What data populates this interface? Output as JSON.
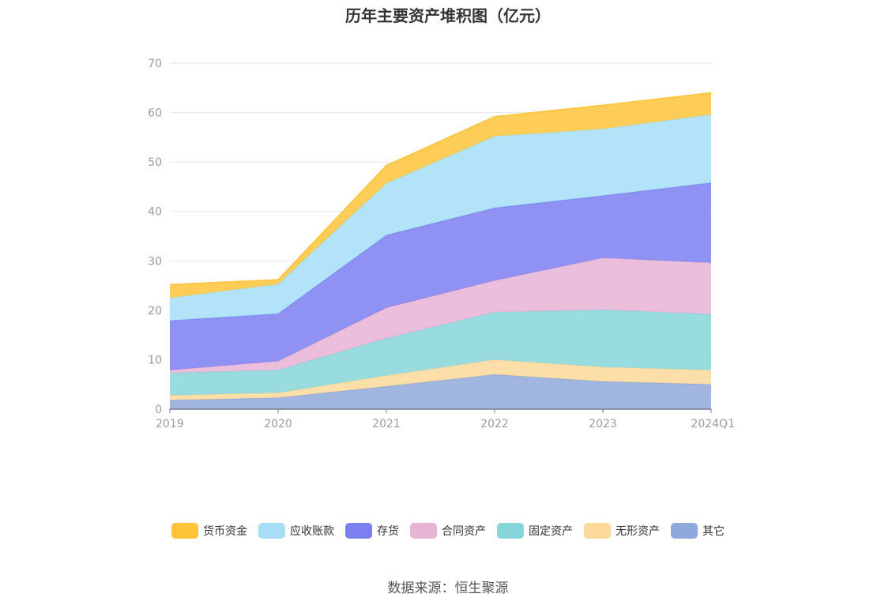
{
  "chart_data": {
    "type": "area",
    "stacked": true,
    "title": "历年主要资产堆积图（亿元）",
    "categories": [
      "2019",
      "2020",
      "2021",
      "2022",
      "2023",
      "2024Q1"
    ],
    "ylim": [
      0,
      70
    ],
    "yticks": [
      "0",
      "10",
      "20",
      "30",
      "40",
      "50",
      "60",
      "70"
    ],
    "grid": true,
    "legend_position": "bottom",
    "series": [
      {
        "name": "其它",
        "color": "#8fa9dc",
        "values": [
          1.8,
          2.3,
          4.6,
          7.0,
          5.6,
          5.0
        ]
      },
      {
        "name": "无形资产",
        "color": "#fcd899",
        "values": [
          1.0,
          1.0,
          2.2,
          3.0,
          2.9,
          2.9
        ]
      },
      {
        "name": "固定资产",
        "color": "#86d6d9",
        "values": [
          4.5,
          4.6,
          7.5,
          9.6,
          11.6,
          11.3
        ]
      },
      {
        "name": "合同资产",
        "color": "#e8b4d6",
        "values": [
          0.6,
          1.8,
          6.2,
          6.4,
          10.5,
          10.4
        ]
      },
      {
        "name": "存货",
        "color": "#7b7ff0",
        "values": [
          10.0,
          9.6,
          14.7,
          14.7,
          12.6,
          16.2
        ]
      },
      {
        "name": "应收账款",
        "color": "#a6def7",
        "values": [
          4.6,
          6.0,
          10.5,
          14.5,
          13.5,
          13.8
        ]
      },
      {
        "name": "货币资金",
        "color": "#fdc43a",
        "values": [
          2.7,
          0.9,
          3.6,
          4.0,
          4.8,
          4.4
        ]
      }
    ]
  },
  "legend": {
    "items": [
      {
        "label": "货币资金",
        "color": "#fdc43a"
      },
      {
        "label": "应收账款",
        "color": "#a6def7"
      },
      {
        "label": "存货",
        "color": "#7b7ff0"
      },
      {
        "label": "合同资产",
        "color": "#e8b4d6"
      },
      {
        "label": "固定资产",
        "color": "#86d6d9"
      },
      {
        "label": "无形资产",
        "color": "#fcd899"
      },
      {
        "label": "其它",
        "color": "#8fa9dc"
      }
    ]
  },
  "source": "数据来源：恒生聚源"
}
